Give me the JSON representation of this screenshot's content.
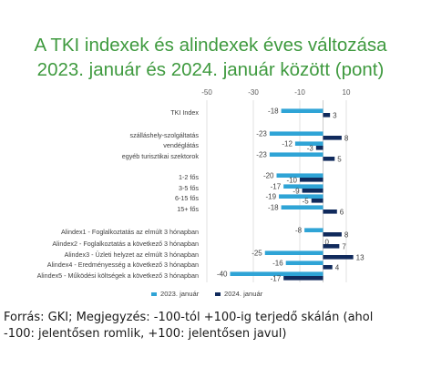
{
  "title_line1": "A TKI indexek és alindexek éves változása",
  "title_line2": "2023. január és 2024. január között (pont)",
  "source_line1": "Forrás: GKI; Megjegyzés: -100-tól +100-ig terjedő skálán (ahol",
  "source_line2": "-100: jelentősen romlik, +100: jelentősen javul)",
  "chart_data": {
    "type": "bar",
    "orientation": "horizontal",
    "title": "A TKI indexek és alindexek éves változása 2023. január és 2024. január között (pont)",
    "xlim": [
      -50,
      10
    ],
    "xticks": [
      -50,
      -30,
      -10,
      10
    ],
    "grid": true,
    "legend_position": "bottom",
    "colors": {
      "2023": "#2fa4d6",
      "2024": "#102a5c"
    },
    "categories": [
      "TKI Index",
      "szálláshely-szolgáltatás",
      "vendéglátás",
      "egyéb turisztikai szektorok",
      "1-2 fős",
      "3-5 fős",
      "6-15 fős",
      "15+ fős",
      "Alindex1 - Foglalkoztatás az elmúlt 3 hónapban",
      "Alindex2 - Foglalkoztatás a következő 3 hónapban",
      "Alindex3 - Üzleti helyzet  az elmúlt 3 hónapban",
      "Alindex4 - Eredményesség a következő 3 hónapban",
      "Alindex5 - Működési költségek a következő 3 hónapban"
    ],
    "series": [
      {
        "name": "2023. január",
        "values": [
          -18,
          -23,
          -12,
          -23,
          -20,
          -17,
          -19,
          -18,
          -8,
          0,
          -25,
          -16,
          -40
        ]
      },
      {
        "name": "2024. január",
        "values": [
          3,
          8,
          -3,
          5,
          -10,
          -9,
          -5,
          6,
          8,
          7,
          13,
          4,
          -17
        ]
      }
    ]
  }
}
